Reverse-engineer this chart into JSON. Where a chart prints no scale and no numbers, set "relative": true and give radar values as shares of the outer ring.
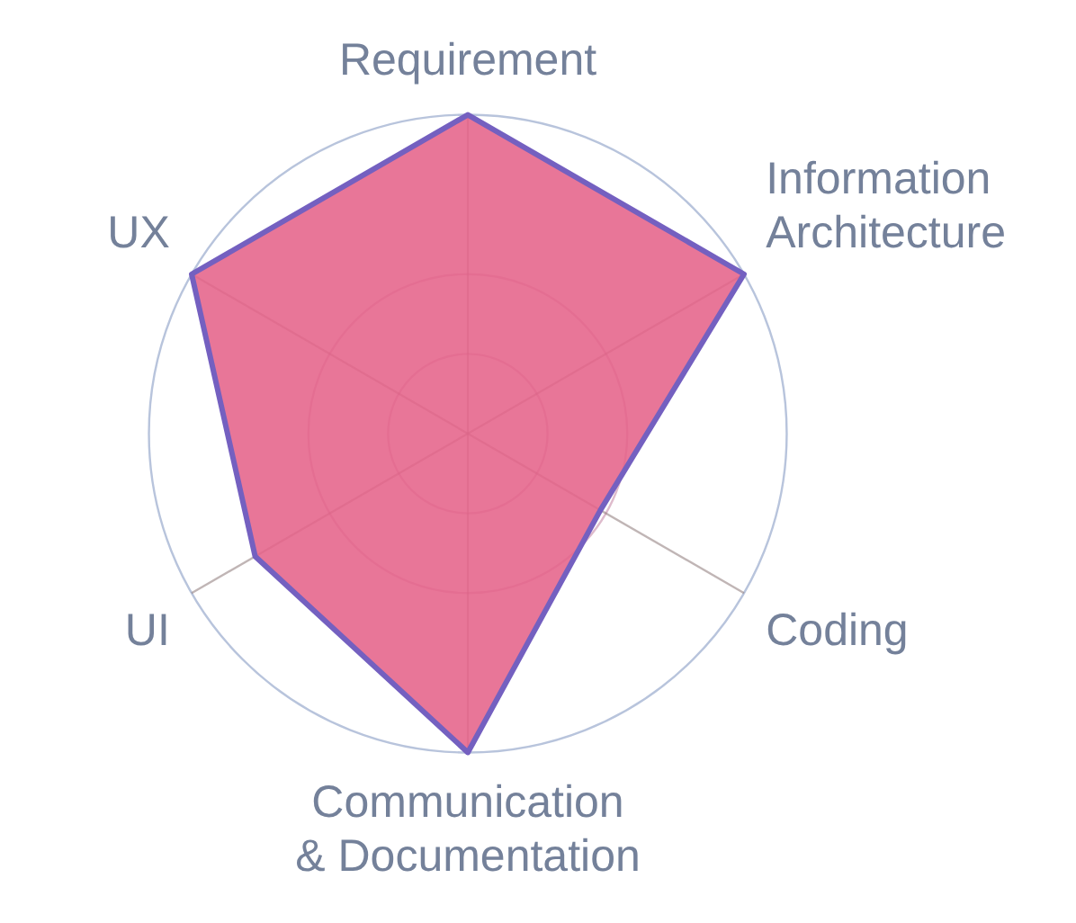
{
  "chart_data": {
    "type": "radar",
    "relative": true,
    "categories": [
      "Requirement",
      "Information\nArchitecture",
      "Coding",
      "Communication\n& Documentation",
      "UI",
      "UX"
    ],
    "series": [
      {
        "color": "#e5638a",
        "values": [
          1,
          1,
          0.48,
          1,
          0.77,
          1
        ]
      }
    ],
    "grid": true,
    "legend": false,
    "marker": "none",
    "line_style": "solid"
  }
}
